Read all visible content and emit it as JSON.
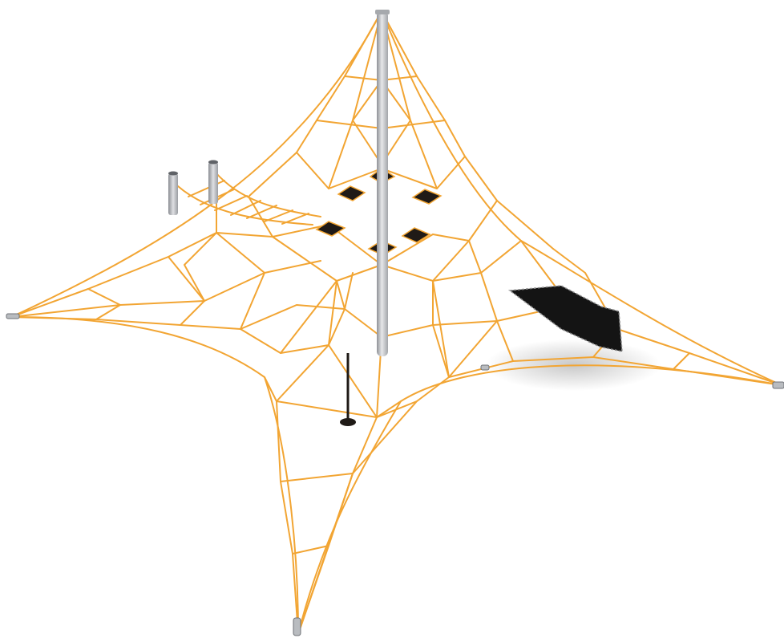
{
  "scene": {
    "subject": "rope-net-climbing-pyramid",
    "colors": {
      "background": "#ffffff",
      "rope": "#f2a533",
      "rope_dark": "#d88a17",
      "pole": "#c6c8cb",
      "pole_shade": "#8e9196",
      "pad": "#1f1a17",
      "trampoline": "#141414"
    }
  }
}
